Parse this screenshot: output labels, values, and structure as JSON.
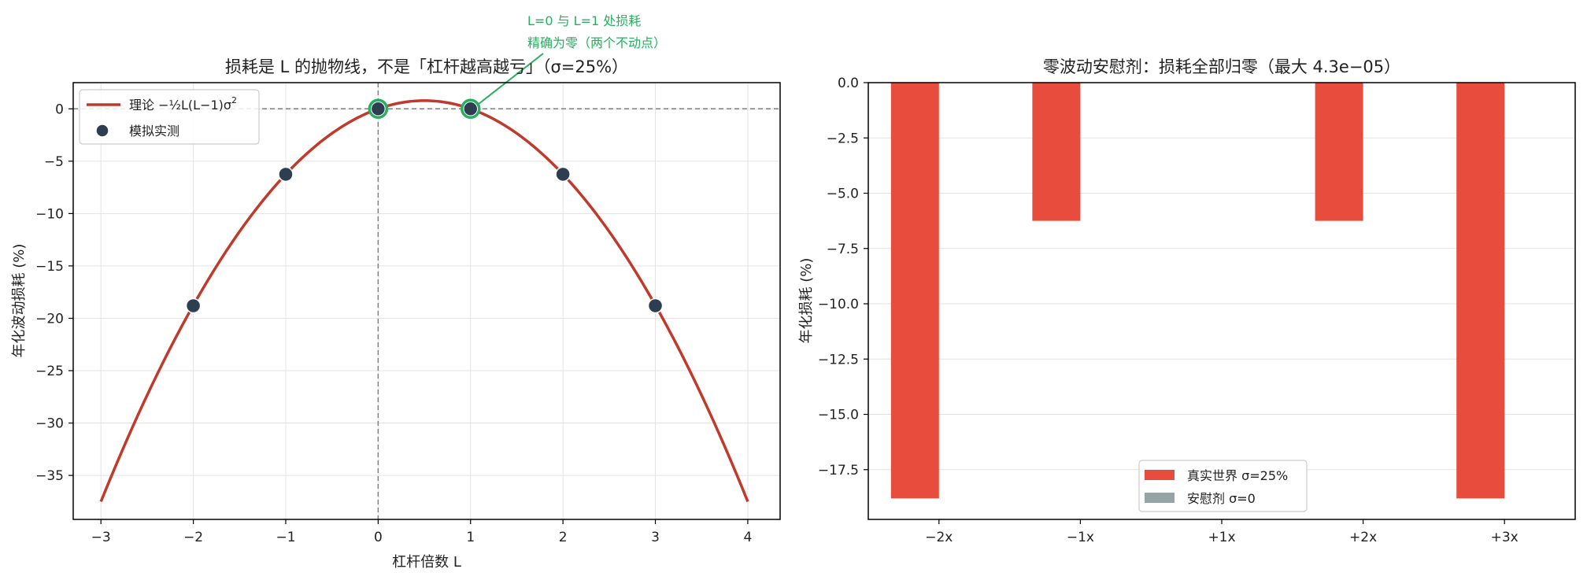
{
  "colors": {
    "curve": "#c0392b",
    "points": "#2c3e50",
    "annotation": "#27ae60",
    "bar_real": "#e74c3c",
    "bar_placebo": "#95a5a6",
    "grid": "#e3e3e3",
    "ref_line": "#7f7f7f"
  },
  "chart_data": [
    {
      "type": "line",
      "title": "损耗是 L 的抛物线，不是「杠杆越高越亏」（σ=25%）",
      "xlabel": "杠杆倍数 L",
      "ylabel": "年化波动损耗 (%)",
      "xlim": [
        -3.3,
        4.35
      ],
      "ylim": [
        -39.2,
        2.5
      ],
      "xticks": [
        -3,
        -2,
        -1,
        0,
        1,
        2,
        3,
        4
      ],
      "xtick_labels": [
        "−3",
        "−2",
        "−1",
        "0",
        "1",
        "2",
        "3",
        "4"
      ],
      "yticks": [
        0,
        -5,
        -10,
        -15,
        -20,
        -25,
        -30,
        -35
      ],
      "ytick_labels": [
        "0",
        "−5",
        "−10",
        "−15",
        "−20",
        "−25",
        "−30",
        "−35"
      ],
      "grid": true,
      "reference_lines": {
        "x": 0,
        "y": 0
      },
      "sigma": 0.25,
      "series": [
        {
          "name": "理论 −½L(L−1)σ²",
          "kind": "curve",
          "x_range": [
            -3,
            4
          ],
          "formula": "-0.5*L*(L-1)*sigma^2*100"
        },
        {
          "name": "模拟实测",
          "kind": "scatter",
          "x": [
            -2,
            -1,
            0,
            1,
            2,
            3
          ],
          "y": [
            -18.8,
            -6.25,
            0,
            0,
            -6.25,
            -18.8
          ]
        }
      ],
      "highlighted_points": [
        [
          0,
          0
        ],
        [
          1,
          0
        ]
      ],
      "annotation": {
        "lines": [
          "L=0 与 L=1 处损耗",
          "精确为零（两个不动点）"
        ],
        "points_to": [
          1,
          0
        ]
      },
      "legend": {
        "placement": "top-left",
        "entries": [
          "理论 −½L(L−1)σ",
          "模拟实测"
        ],
        "superscript": "2"
      }
    },
    {
      "type": "bar",
      "title": "零波动安慰剂：损耗全部归零（最大 4.3e−05）",
      "xlabel": "",
      "ylabel": "年化损耗 (%)",
      "categories": [
        "−2x",
        "−1x",
        "+1x",
        "+2x",
        "+3x"
      ],
      "ylim": [
        -19.75,
        0
      ],
      "yticks": [
        0,
        -2.5,
        -5,
        -7.5,
        -10,
        -12.5,
        -15,
        -17.5
      ],
      "ytick_labels": [
        "0.0",
        "−2.5",
        "−5.0",
        "−7.5",
        "−10.0",
        "−12.5",
        "−15.0",
        "−17.5"
      ],
      "grid": true,
      "series": [
        {
          "name": "真实世界 σ=25%",
          "values": [
            -18.8,
            -6.25,
            0,
            -6.25,
            -18.8
          ]
        },
        {
          "name": "安慰剂 σ=0",
          "values": [
            0,
            0,
            0,
            0,
            4e-05
          ]
        }
      ],
      "legend": {
        "placement": "lower-center"
      }
    }
  ]
}
